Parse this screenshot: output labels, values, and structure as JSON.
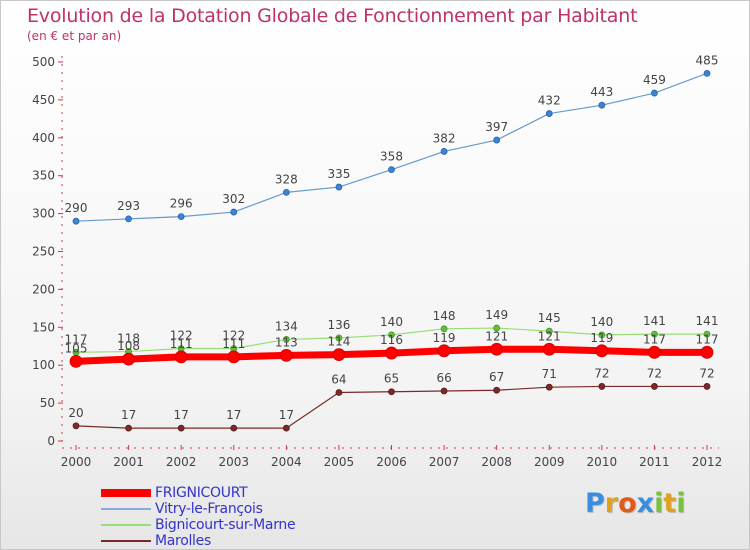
{
  "title": "Evolution de la Dotation Globale de Fonctionnement par Habitant",
  "subtitle": "(en € et par an)",
  "chart_data": {
    "type": "line",
    "title": "Evolution de la Dotation Globale de Fonctionnement par Habitant",
    "subtitle": "(en € et par an)",
    "xlabel": "",
    "ylabel": "",
    "x": [
      "2000",
      "2001",
      "2002",
      "2003",
      "2004",
      "2005",
      "2006",
      "2007",
      "2008",
      "2009",
      "2010",
      "2011",
      "2012"
    ],
    "ylim": [
      0,
      500
    ],
    "yticks": [
      0,
      50,
      100,
      150,
      200,
      250,
      300,
      350,
      400,
      450,
      500
    ],
    "grid": false,
    "series": [
      {
        "name": "FRIGNICOURT",
        "color": "#ff0000",
        "values": [
          105,
          108,
          111,
          111,
          113,
          114,
          116,
          119,
          121,
          121,
          119,
          117,
          117
        ]
      },
      {
        "name": "Vitry-le-François",
        "color": "#6699cc",
        "values": [
          290,
          293,
          296,
          302,
          328,
          335,
          358,
          382,
          397,
          432,
          443,
          459,
          485
        ]
      },
      {
        "name": "Bignicourt-sur-Marne",
        "color": "#99dd77",
        "values": [
          117,
          118,
          122,
          122,
          134,
          136,
          140,
          148,
          149,
          145,
          140,
          141,
          141
        ]
      },
      {
        "name": "Marolles",
        "color": "#7b2a2a",
        "values": [
          20,
          17,
          17,
          17,
          17,
          64,
          65,
          66,
          67,
          71,
          72,
          72,
          72
        ]
      }
    ],
    "legend_position": "bottom-left"
  },
  "legend": [
    {
      "label": "FRIGNICOURT",
      "color": "#ff0000",
      "text_color": "#3333cc"
    },
    {
      "label": "Vitry-le-François",
      "color": "#88aadd",
      "text_color": "#3333cc"
    },
    {
      "label": "Bignicourt-sur-Marne",
      "color": "#99dd77",
      "text_color": "#3333cc"
    },
    {
      "label": "Marolles",
      "color": "#7b2a2a",
      "text_color": "#3333cc"
    }
  ],
  "logo": {
    "letters": [
      {
        "ch": "P",
        "color": "#3a8ee0"
      },
      {
        "ch": "r",
        "color": "#e0a020"
      },
      {
        "ch": "o",
        "color": "#e05a1a"
      },
      {
        "ch": "x",
        "color": "#3a8ee0"
      },
      {
        "ch": "i",
        "color": "#7ac040"
      },
      {
        "ch": "t",
        "color": "#e0a020"
      },
      {
        "ch": "i",
        "color": "#7ac040"
      }
    ]
  }
}
